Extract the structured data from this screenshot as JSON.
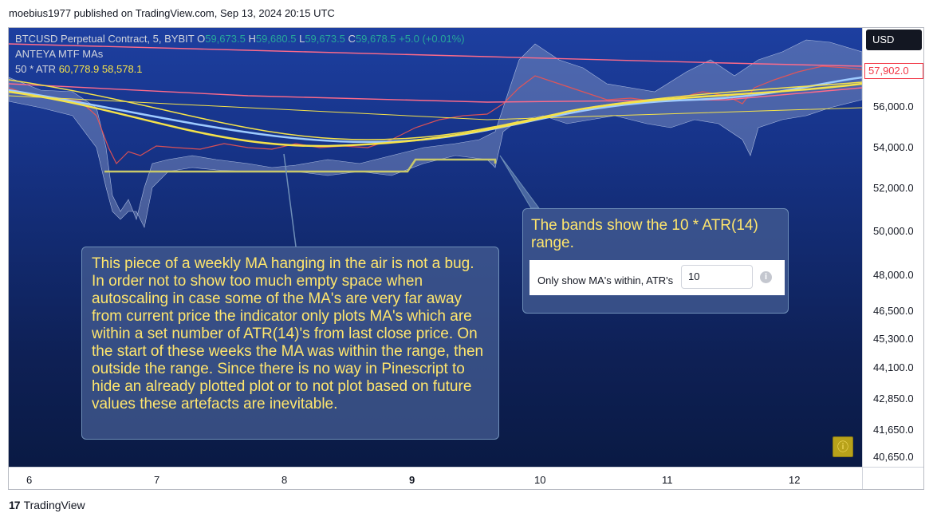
{
  "header": {
    "publish_line": "moebius1977 published on TradingView.com, Sep 13, 2024 20:15 UTC"
  },
  "legend": {
    "symbol": "BTCUSD Perpetual Contract, 5, BYBIT",
    "o_label": "O",
    "o_value": "59,673.5",
    "h_label": "H",
    "h_value": "59,680.5",
    "l_label": "L",
    "l_value": "59,673.5",
    "c_label": "C",
    "c_value": "59,678.5",
    "change": "+5.0 (+0.01%)",
    "indicator": "ANTEYA MTF MAs",
    "atr_label": "50 * ATR",
    "atr_upper": "60,778.9",
    "atr_lower": "58,578.1"
  },
  "price_axis": {
    "currency_button": "USD",
    "last_price": "57,902.0",
    "ticks": [
      "56,000.0",
      "54,000.0",
      "52,000.0",
      "50,000.0",
      "48,000.0",
      "46,500.0",
      "45,300.0",
      "44,100.0",
      "42,850.0",
      "41,650.0",
      "40,650.0"
    ]
  },
  "time_axis": {
    "ticks": [
      {
        "label": "6",
        "bold": false
      },
      {
        "label": "7",
        "bold": false
      },
      {
        "label": "8",
        "bold": false
      },
      {
        "label": "9",
        "bold": true
      },
      {
        "label": "10",
        "bold": false
      },
      {
        "label": "11",
        "bold": false
      },
      {
        "label": "12",
        "bold": false
      }
    ]
  },
  "annotations": {
    "main_text": "This piece of a weekly MA hanging in the air is not a bug. In order not to show too much empty space when autoscaling in case some of the MA's are very far away from current price the indicator only plots MA's which are within a set number of ATR(14)'s from last close price. On the start of these weeks the MA was within the range, then outside the range.  Since there is no way in Pinescript to hide an already plotted plot or to not plot based on future values these artefacts are inevitable.",
    "bands_text": "The bands show the 10 * ATR(14) range.",
    "setting_label": "Only show MA's within, ATR's",
    "setting_value": "10",
    "info_glyph": "i"
  },
  "alert_glyph": "ⓘ",
  "footer": {
    "brand": "TradingView",
    "logo_glyph": "17"
  },
  "colors": {
    "candle_up": "#26a69a",
    "candle_down": "#ef5350",
    "ma_yellow": "#f5e24a",
    "ma_khaki": "#c8c86a",
    "ma_light_blue": "#9ecbff",
    "ma_pink": "#ff6b8a",
    "band_fill": "#8a9cc8"
  }
}
